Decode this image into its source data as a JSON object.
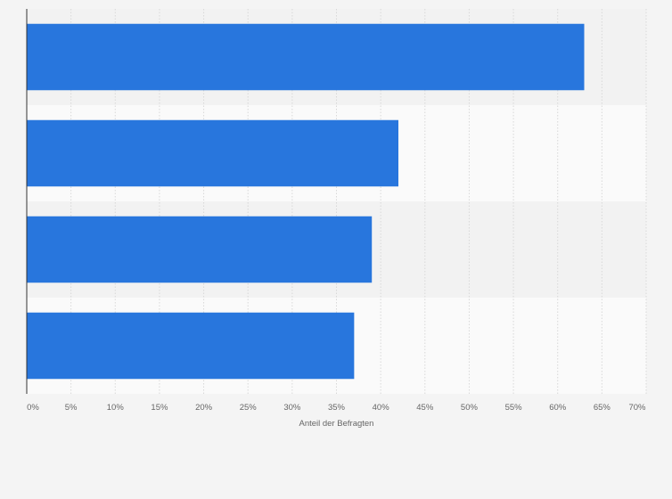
{
  "chart_data": {
    "type": "bar",
    "orientation": "horizontal",
    "title": "",
    "xlabel": "Anteil der Befragten",
    "ylabel": "",
    "categories": [
      "",
      "",
      "",
      ""
    ],
    "values": [
      63,
      42,
      39,
      37
    ],
    "xlim": [
      0,
      70
    ],
    "x_ticks": [
      0,
      5,
      10,
      15,
      20,
      25,
      30,
      35,
      40,
      45,
      50,
      55,
      60,
      65,
      70
    ],
    "x_tick_labels": [
      "0%",
      "5%",
      "10%",
      "15%",
      "20%",
      "25%",
      "30%",
      "35%",
      "40%",
      "45%",
      "50%",
      "55%",
      "60%",
      "65%",
      "70%"
    ],
    "grid": true,
    "legend": "none",
    "colors": {
      "bar": "#2876dd",
      "background": "#f4f4f4",
      "band_light": "#fafafa",
      "band_dark": "#f2f2f2",
      "grid": "#d8d8d8",
      "axis": "#333333",
      "text": "#666666"
    }
  }
}
